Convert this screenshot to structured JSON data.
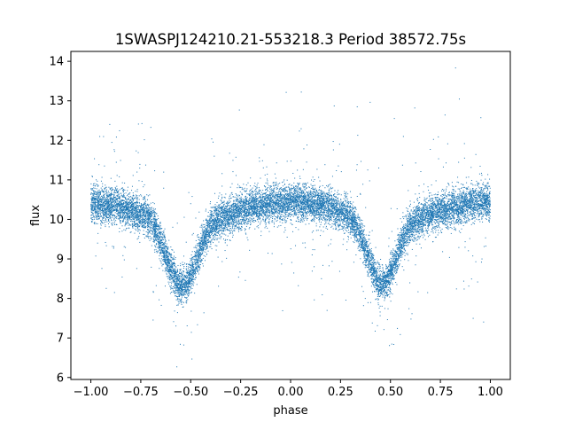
{
  "chart_data": {
    "type": "scatter",
    "title": "1SWASPJ124210.21-553218.3 Period 38572.75s",
    "xlabel": "phase",
    "ylabel": "flux",
    "xlim": [
      -1.1,
      1.1
    ],
    "ylim": [
      5.95,
      14.25
    ],
    "x_ticks": [
      -1.0,
      -0.75,
      -0.5,
      -0.25,
      0.0,
      0.25,
      0.5,
      0.75,
      1.0
    ],
    "x_tick_labels": [
      "−1.00",
      "−0.75",
      "−0.50",
      "−0.25",
      "0.00",
      "0.25",
      "0.50",
      "0.75",
      "1.00"
    ],
    "y_ticks": [
      6,
      7,
      8,
      9,
      10,
      11,
      12,
      13,
      14
    ],
    "y_tick_labels": [
      "6",
      "7",
      "8",
      "9",
      "10",
      "11",
      "12",
      "13",
      "14"
    ],
    "grid": false,
    "legend": "none",
    "marker_color": "#1f77b4",
    "phase_range": [
      -1.0,
      1.0
    ],
    "light_curve_profile": {
      "description_of_values": "approximate median flux along phase",
      "phase": [
        -1.0,
        -0.9,
        -0.8,
        -0.7,
        -0.65,
        -0.6,
        -0.56,
        -0.52,
        -0.48,
        -0.44,
        -0.4,
        -0.3,
        -0.2,
        -0.1,
        0.0,
        0.1,
        0.2,
        0.3,
        0.35,
        0.4,
        0.44,
        0.48,
        0.52,
        0.56,
        0.6,
        0.7,
        0.8,
        0.9,
        1.0
      ],
      "flux": [
        10.4,
        10.35,
        10.25,
        10.0,
        9.45,
        8.75,
        8.3,
        8.35,
        8.8,
        9.4,
        9.85,
        10.15,
        10.3,
        10.4,
        10.45,
        10.4,
        10.3,
        10.05,
        9.6,
        8.9,
        8.35,
        8.4,
        8.9,
        9.45,
        9.85,
        10.15,
        10.3,
        10.4,
        10.45
      ]
    },
    "scatter_sigma_flux": 0.22,
    "approx_point_count": 14000
  }
}
